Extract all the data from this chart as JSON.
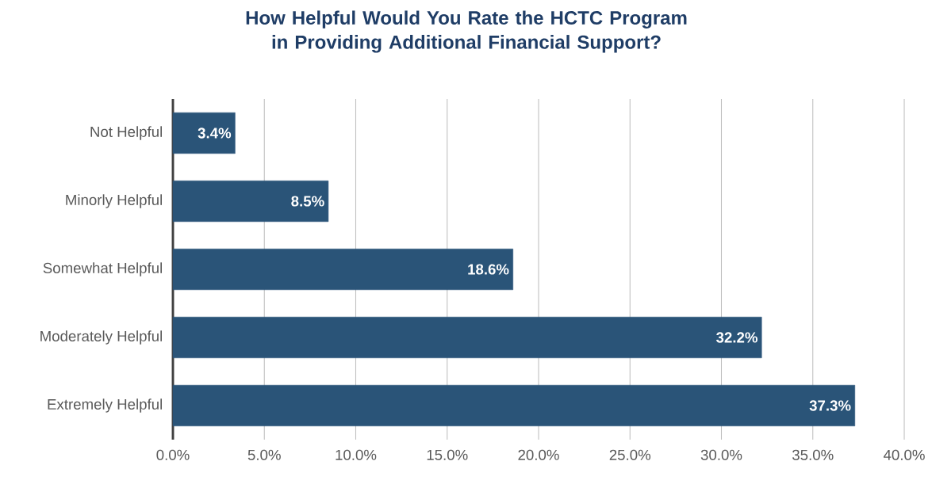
{
  "chart_data": {
    "type": "bar",
    "orientation": "horizontal",
    "title": "How Helpful Would You Rate the HCTC Program in Providing Additional Financial Support?",
    "categories": [
      "Not Helpful",
      "Minorly Helpful",
      "Somewhat Helpful",
      "Moderately Helpful",
      "Extremely Helpful"
    ],
    "values": [
      3.4,
      8.5,
      18.6,
      32.2,
      37.3
    ],
    "value_labels": [
      "3.4%",
      "8.5%",
      "18.6%",
      "32.2%",
      "37.3%"
    ],
    "color": "#2a5478",
    "xlim": [
      0,
      40
    ],
    "xticks": [
      {
        "value": 0,
        "label": "0.0%"
      },
      {
        "value": 5,
        "label": "5.0%"
      },
      {
        "value": 10,
        "label": "10.0%"
      },
      {
        "value": 15,
        "label": "15.0%"
      },
      {
        "value": 20,
        "label": "20.0%"
      },
      {
        "value": 25,
        "label": "25.0%"
      },
      {
        "value": 30,
        "label": "30.0%"
      },
      {
        "value": 35,
        "label": "35.0%"
      },
      {
        "value": 40,
        "label": "40.0%"
      }
    ],
    "grid": "x"
  }
}
